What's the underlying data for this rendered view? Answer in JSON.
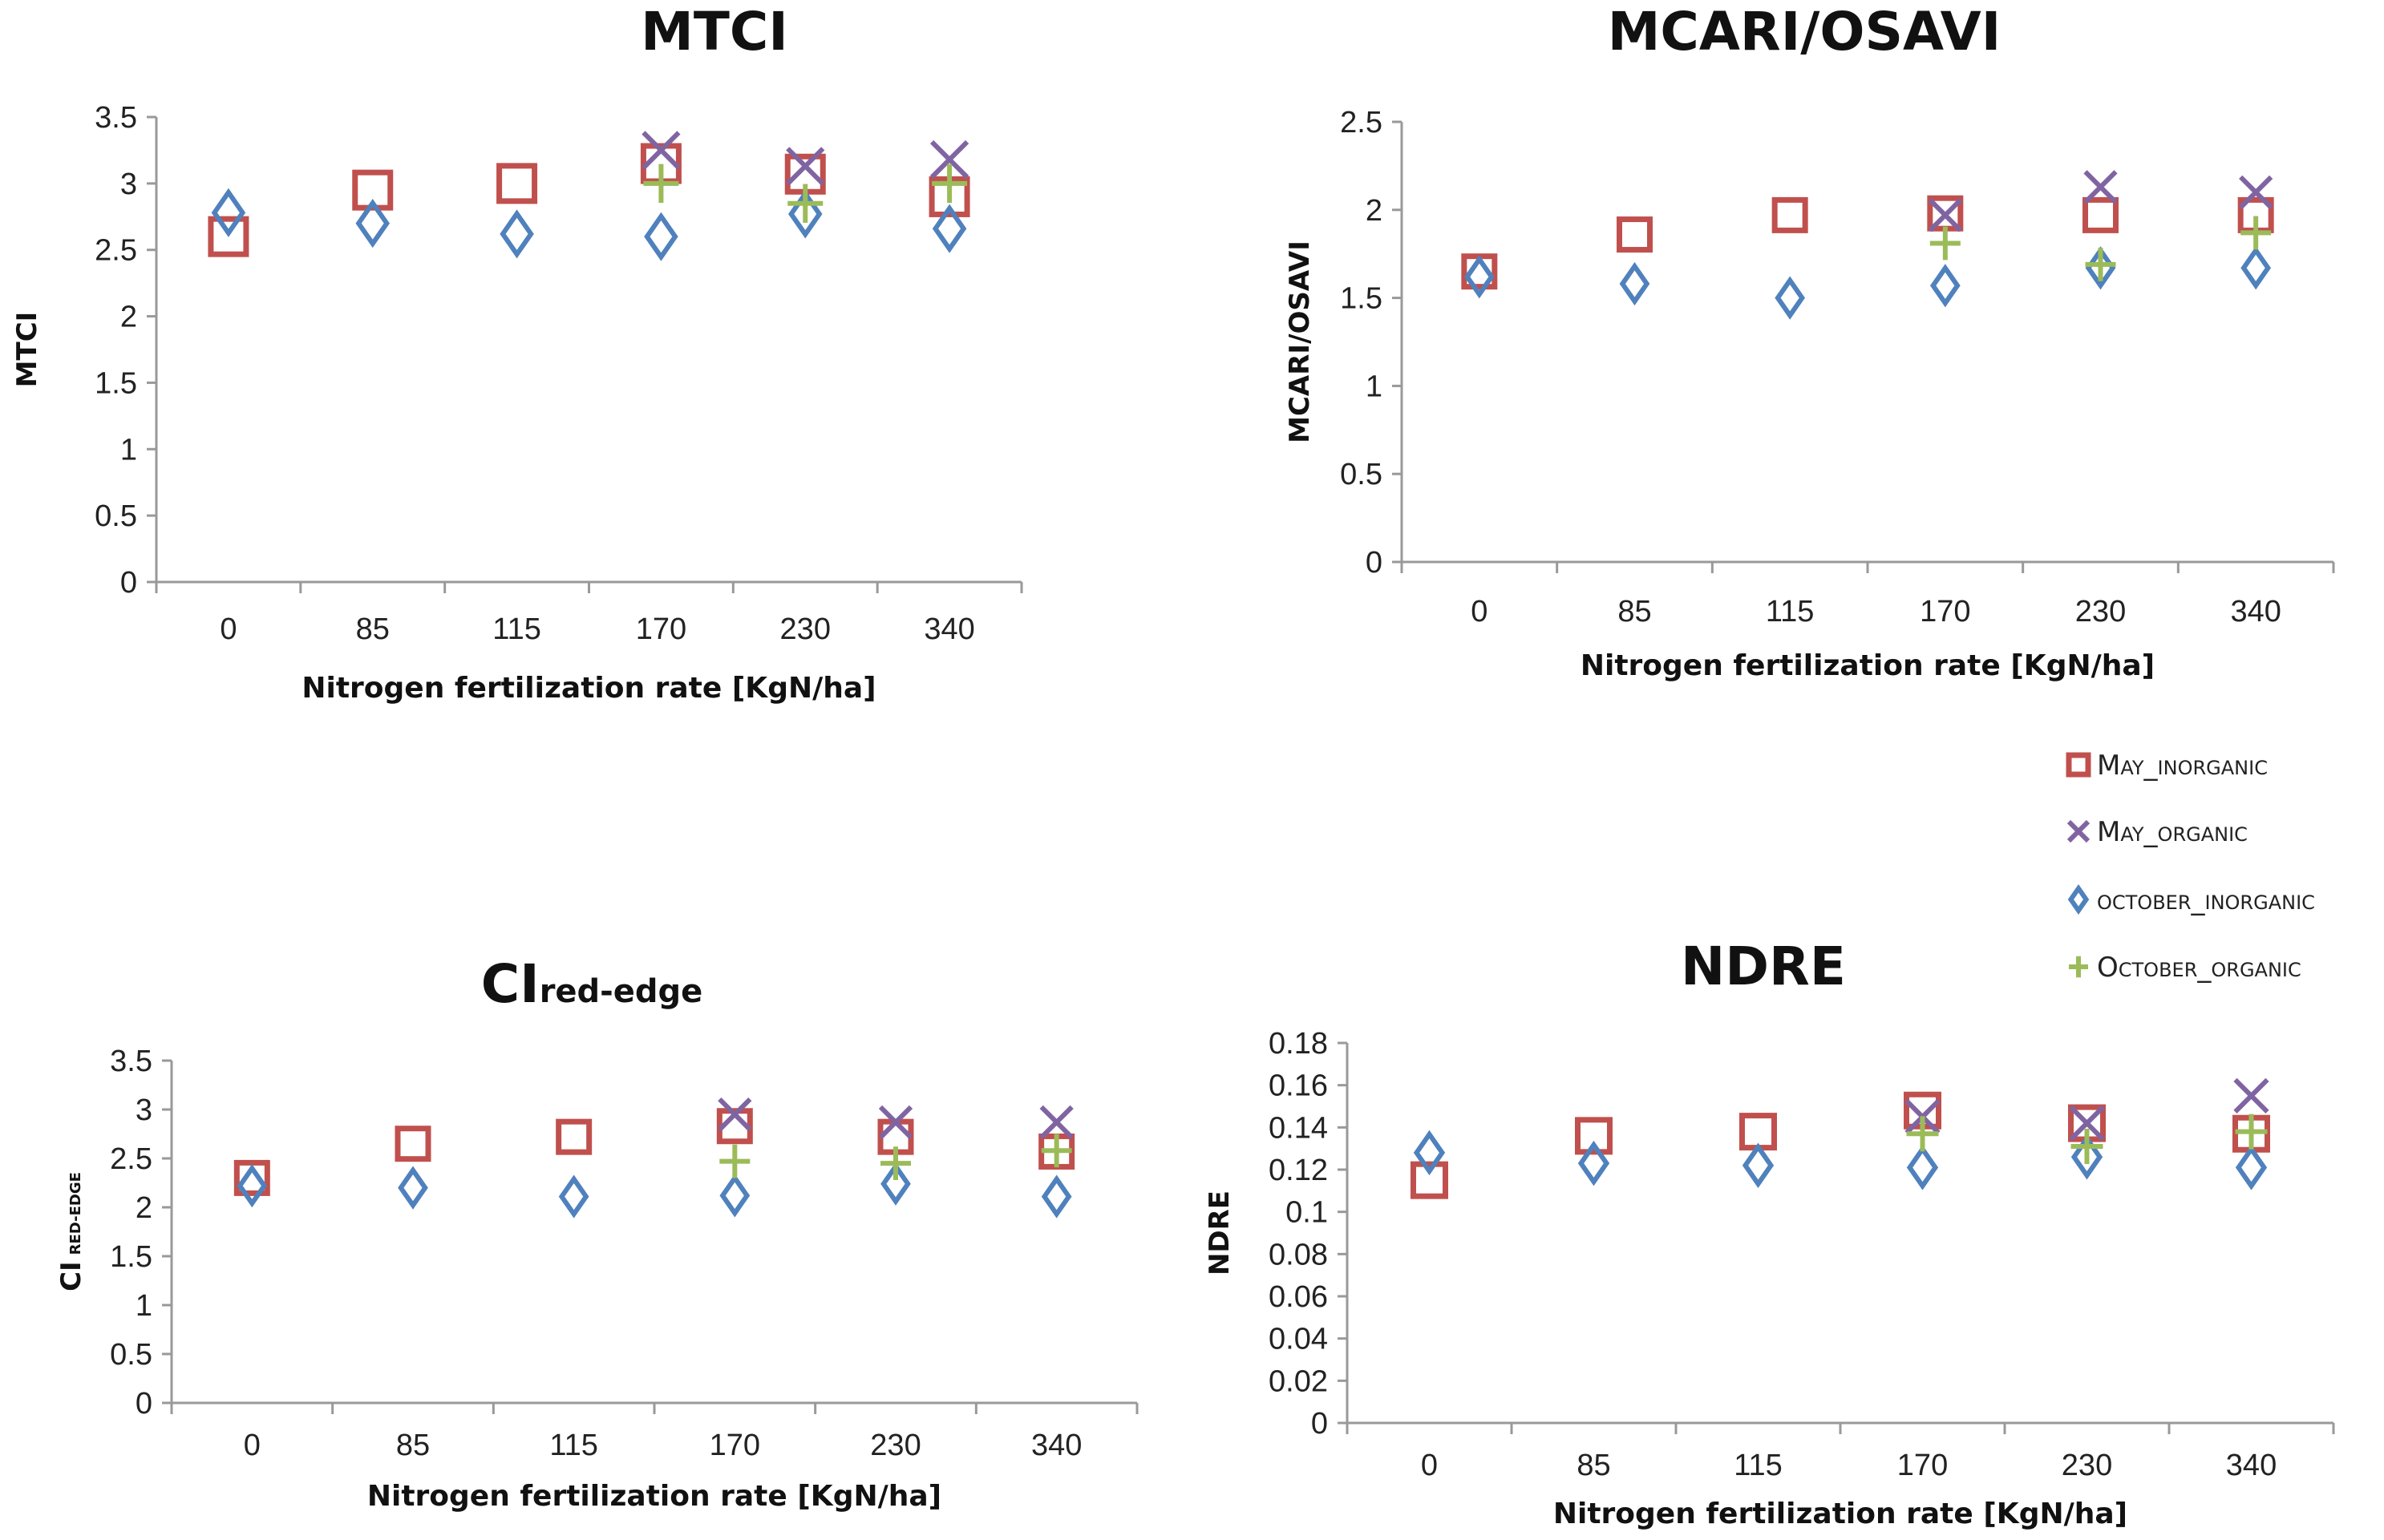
{
  "chart_data": [
    {
      "type": "scatter",
      "title": "MTCI",
      "xlabel": "Nitrogen fertilization rate [KgN/ha]",
      "ylabel": "MTCI",
      "categories": [
        "0",
        "85",
        "115",
        "170",
        "230",
        "340"
      ],
      "ylim": [
        0,
        3.5
      ],
      "yticks": [
        "0",
        "0.5",
        "1",
        "1.5",
        "2",
        "2.5",
        "3",
        "3.5"
      ],
      "series": [
        {
          "name": "May_inorganic",
          "values": [
            2.6,
            2.95,
            3.0,
            3.15,
            3.07,
            2.9
          ]
        },
        {
          "name": "May_organic",
          "values": [
            null,
            null,
            null,
            3.25,
            3.13,
            3.18
          ]
        },
        {
          "name": "october_inorganic",
          "values": [
            2.78,
            2.7,
            2.62,
            2.6,
            2.77,
            2.66
          ]
        },
        {
          "name": "October_organic",
          "values": [
            null,
            null,
            null,
            3.0,
            2.85,
            3.0
          ]
        }
      ]
    },
    {
      "type": "scatter",
      "title": "MCARI/OSAVI",
      "xlabel": "Nitrogen fertilization rate [KgN/ha]",
      "ylabel": "MCARI/OSAVI",
      "categories": [
        "0",
        "85",
        "115",
        "170",
        "230",
        "340"
      ],
      "ylim": [
        0,
        2.5
      ],
      "yticks": [
        "0",
        "0.5",
        "1",
        "1.5",
        "2",
        "2.5"
      ],
      "series": [
        {
          "name": "May_inorganic",
          "values": [
            1.65,
            1.86,
            1.97,
            1.98,
            1.97,
            1.97
          ]
        },
        {
          "name": "May_organic",
          "values": [
            null,
            null,
            null,
            1.97,
            2.13,
            2.1
          ]
        },
        {
          "name": "october_inorganic",
          "values": [
            1.62,
            1.58,
            1.5,
            1.57,
            1.67,
            1.67
          ]
        },
        {
          "name": "October_organic",
          "values": [
            null,
            null,
            null,
            1.81,
            1.69,
            1.87
          ]
        }
      ]
    },
    {
      "type": "scatter",
      "title": "CI",
      "title_sub": "red-edge",
      "xlabel": "Nitrogen fertilization rate [KgN/ha]",
      "ylabel": "CI",
      "ylabel_sub": "RED-EDGE",
      "categories": [
        "0",
        "85",
        "115",
        "170",
        "230",
        "340"
      ],
      "ylim": [
        0,
        3.5
      ],
      "yticks": [
        "0",
        "0.5",
        "1",
        "1.5",
        "2",
        "2.5",
        "3",
        "3.5"
      ],
      "series": [
        {
          "name": "May_inorganic",
          "values": [
            2.3,
            2.65,
            2.72,
            2.83,
            2.72,
            2.57
          ]
        },
        {
          "name": "May_organic",
          "values": [
            null,
            null,
            null,
            2.95,
            2.87,
            2.87
          ]
        },
        {
          "name": "october_inorganic",
          "values": [
            2.22,
            2.2,
            2.11,
            2.12,
            2.24,
            2.11
          ]
        },
        {
          "name": "October_organic",
          "values": [
            null,
            null,
            null,
            2.47,
            2.45,
            2.58
          ]
        }
      ]
    },
    {
      "type": "scatter",
      "title": "NDRE",
      "xlabel": "Nitrogen fertilization rate [KgN/ha]",
      "ylabel": "NDRE",
      "categories": [
        "0",
        "85",
        "115",
        "170",
        "230",
        "340"
      ],
      "ylim": [
        0,
        0.18
      ],
      "yticks": [
        "0",
        "0.02",
        "0.04",
        "0.06",
        "0.08",
        "0.1",
        "0.12",
        "0.14",
        "0.16",
        "0.18"
      ],
      "series": [
        {
          "name": "May_inorganic",
          "values": [
            0.115,
            0.136,
            0.138,
            0.148,
            0.142,
            0.137
          ]
        },
        {
          "name": "May_organic",
          "values": [
            null,
            null,
            null,
            0.145,
            0.142,
            0.155
          ]
        },
        {
          "name": "october_inorganic",
          "values": [
            0.128,
            0.123,
            0.122,
            0.121,
            0.126,
            0.121
          ]
        },
        {
          "name": "October_organic",
          "values": [
            null,
            null,
            null,
            0.137,
            0.131,
            0.138
          ]
        }
      ]
    }
  ],
  "legend": {
    "placement": "right",
    "items": [
      {
        "label": "May_inorganic",
        "marker": "square",
        "color": "#C0504D"
      },
      {
        "label": "May_organic",
        "marker": "x",
        "color": "#8064A2"
      },
      {
        "label": "october_inorganic",
        "marker": "diamond",
        "color": "#4F81BD"
      },
      {
        "label": "October_organic",
        "marker": "plus",
        "color": "#9BBB59"
      }
    ]
  }
}
